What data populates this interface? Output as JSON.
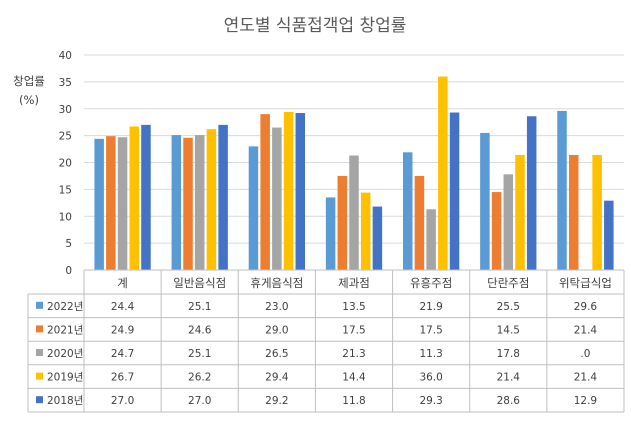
{
  "chart_data": {
    "type": "bar",
    "title": "연도별 식품접객업 창업률",
    "ylabel_line1": "창업률",
    "ylabel_line2": "(%)",
    "ylim": [
      0,
      40
    ],
    "yticks": [
      0,
      5,
      10,
      15,
      20,
      25,
      30,
      35,
      40
    ],
    "grid": true,
    "categories": [
      "계",
      "일반음식점",
      "휴게음식점",
      "제과점",
      "유흥주점",
      "단란주점",
      "위탁급식업"
    ],
    "series": [
      {
        "name": "2022년",
        "color": "#5B9BD5",
        "values": [
          24.4,
          25.1,
          23.0,
          13.5,
          21.9,
          25.5,
          29.6
        ],
        "labels": [
          "24.4",
          "25.1",
          "23.0",
          "13.5",
          "21.9",
          "25.5",
          "29.6"
        ]
      },
      {
        "name": "2021년",
        "color": "#ED7D31",
        "values": [
          24.9,
          24.6,
          29.0,
          17.5,
          17.5,
          14.5,
          21.4
        ],
        "labels": [
          "24.9",
          "24.6",
          "29.0",
          "17.5",
          "17.5",
          "14.5",
          "21.4"
        ]
      },
      {
        "name": "2020년",
        "color": "#A5A5A5",
        "values": [
          24.7,
          25.1,
          26.5,
          21.3,
          11.3,
          17.8,
          0
        ],
        "labels": [
          "24.7",
          "25.1",
          "26.5",
          "21.3",
          "11.3",
          "17.8",
          ".0"
        ]
      },
      {
        "name": "2019년",
        "color": "#FFC000",
        "values": [
          26.7,
          26.2,
          29.4,
          14.4,
          36.0,
          21.4,
          21.4
        ],
        "labels": [
          "26.7",
          "26.2",
          "29.4",
          "14.4",
          "36.0",
          "21.4",
          "21.4"
        ]
      },
      {
        "name": "2018년",
        "color": "#4472C4",
        "values": [
          27.0,
          27.0,
          29.2,
          11.8,
          29.3,
          28.6,
          12.9
        ],
        "labels": [
          "27.0",
          "27.0",
          "29.2",
          "11.8",
          "29.3",
          "28.6",
          "12.9"
        ]
      }
    ]
  }
}
